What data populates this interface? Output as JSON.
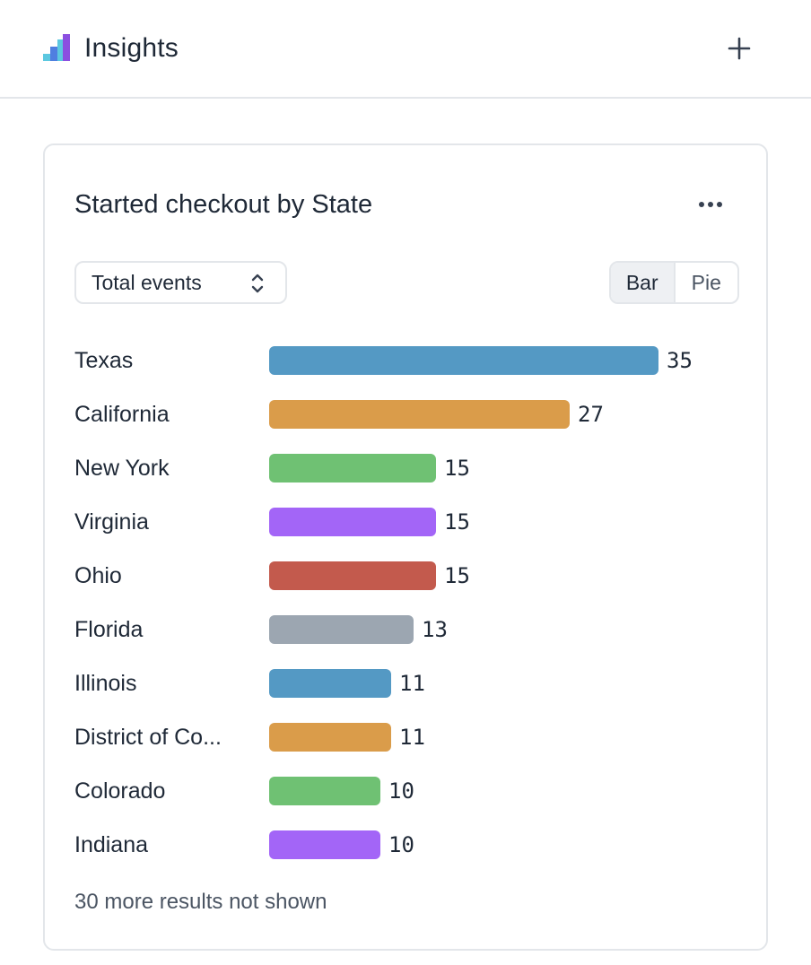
{
  "header": {
    "title": "Insights",
    "logo_icon": "bar-chart-logo-icon",
    "add_icon": "plus-icon"
  },
  "card": {
    "title": "Started checkout by State",
    "more_icon": "more-horizontal-icon",
    "metric_select": {
      "value": "Total events",
      "icon": "chevron-up-down-icon"
    },
    "view_toggle": {
      "options": [
        "Bar",
        "Pie"
      ],
      "selected": "Bar"
    },
    "footer_note": "30 more results not shown"
  },
  "chart_data": {
    "type": "bar",
    "orientation": "horizontal",
    "categories": [
      "Texas",
      "California",
      "New York",
      "Virginia",
      "Ohio",
      "Florida",
      "Illinois",
      "District of Co...",
      "Colorado",
      "Indiana"
    ],
    "values": [
      35,
      27,
      15,
      15,
      15,
      13,
      11,
      11,
      10,
      10
    ],
    "colors": [
      "#5499c4",
      "#da9c4a",
      "#6fc173",
      "#a365f7",
      "#c35a4d",
      "#9ca6b1",
      "#5499c4",
      "#da9c4a",
      "#6fc173",
      "#a365f7"
    ]
  }
}
